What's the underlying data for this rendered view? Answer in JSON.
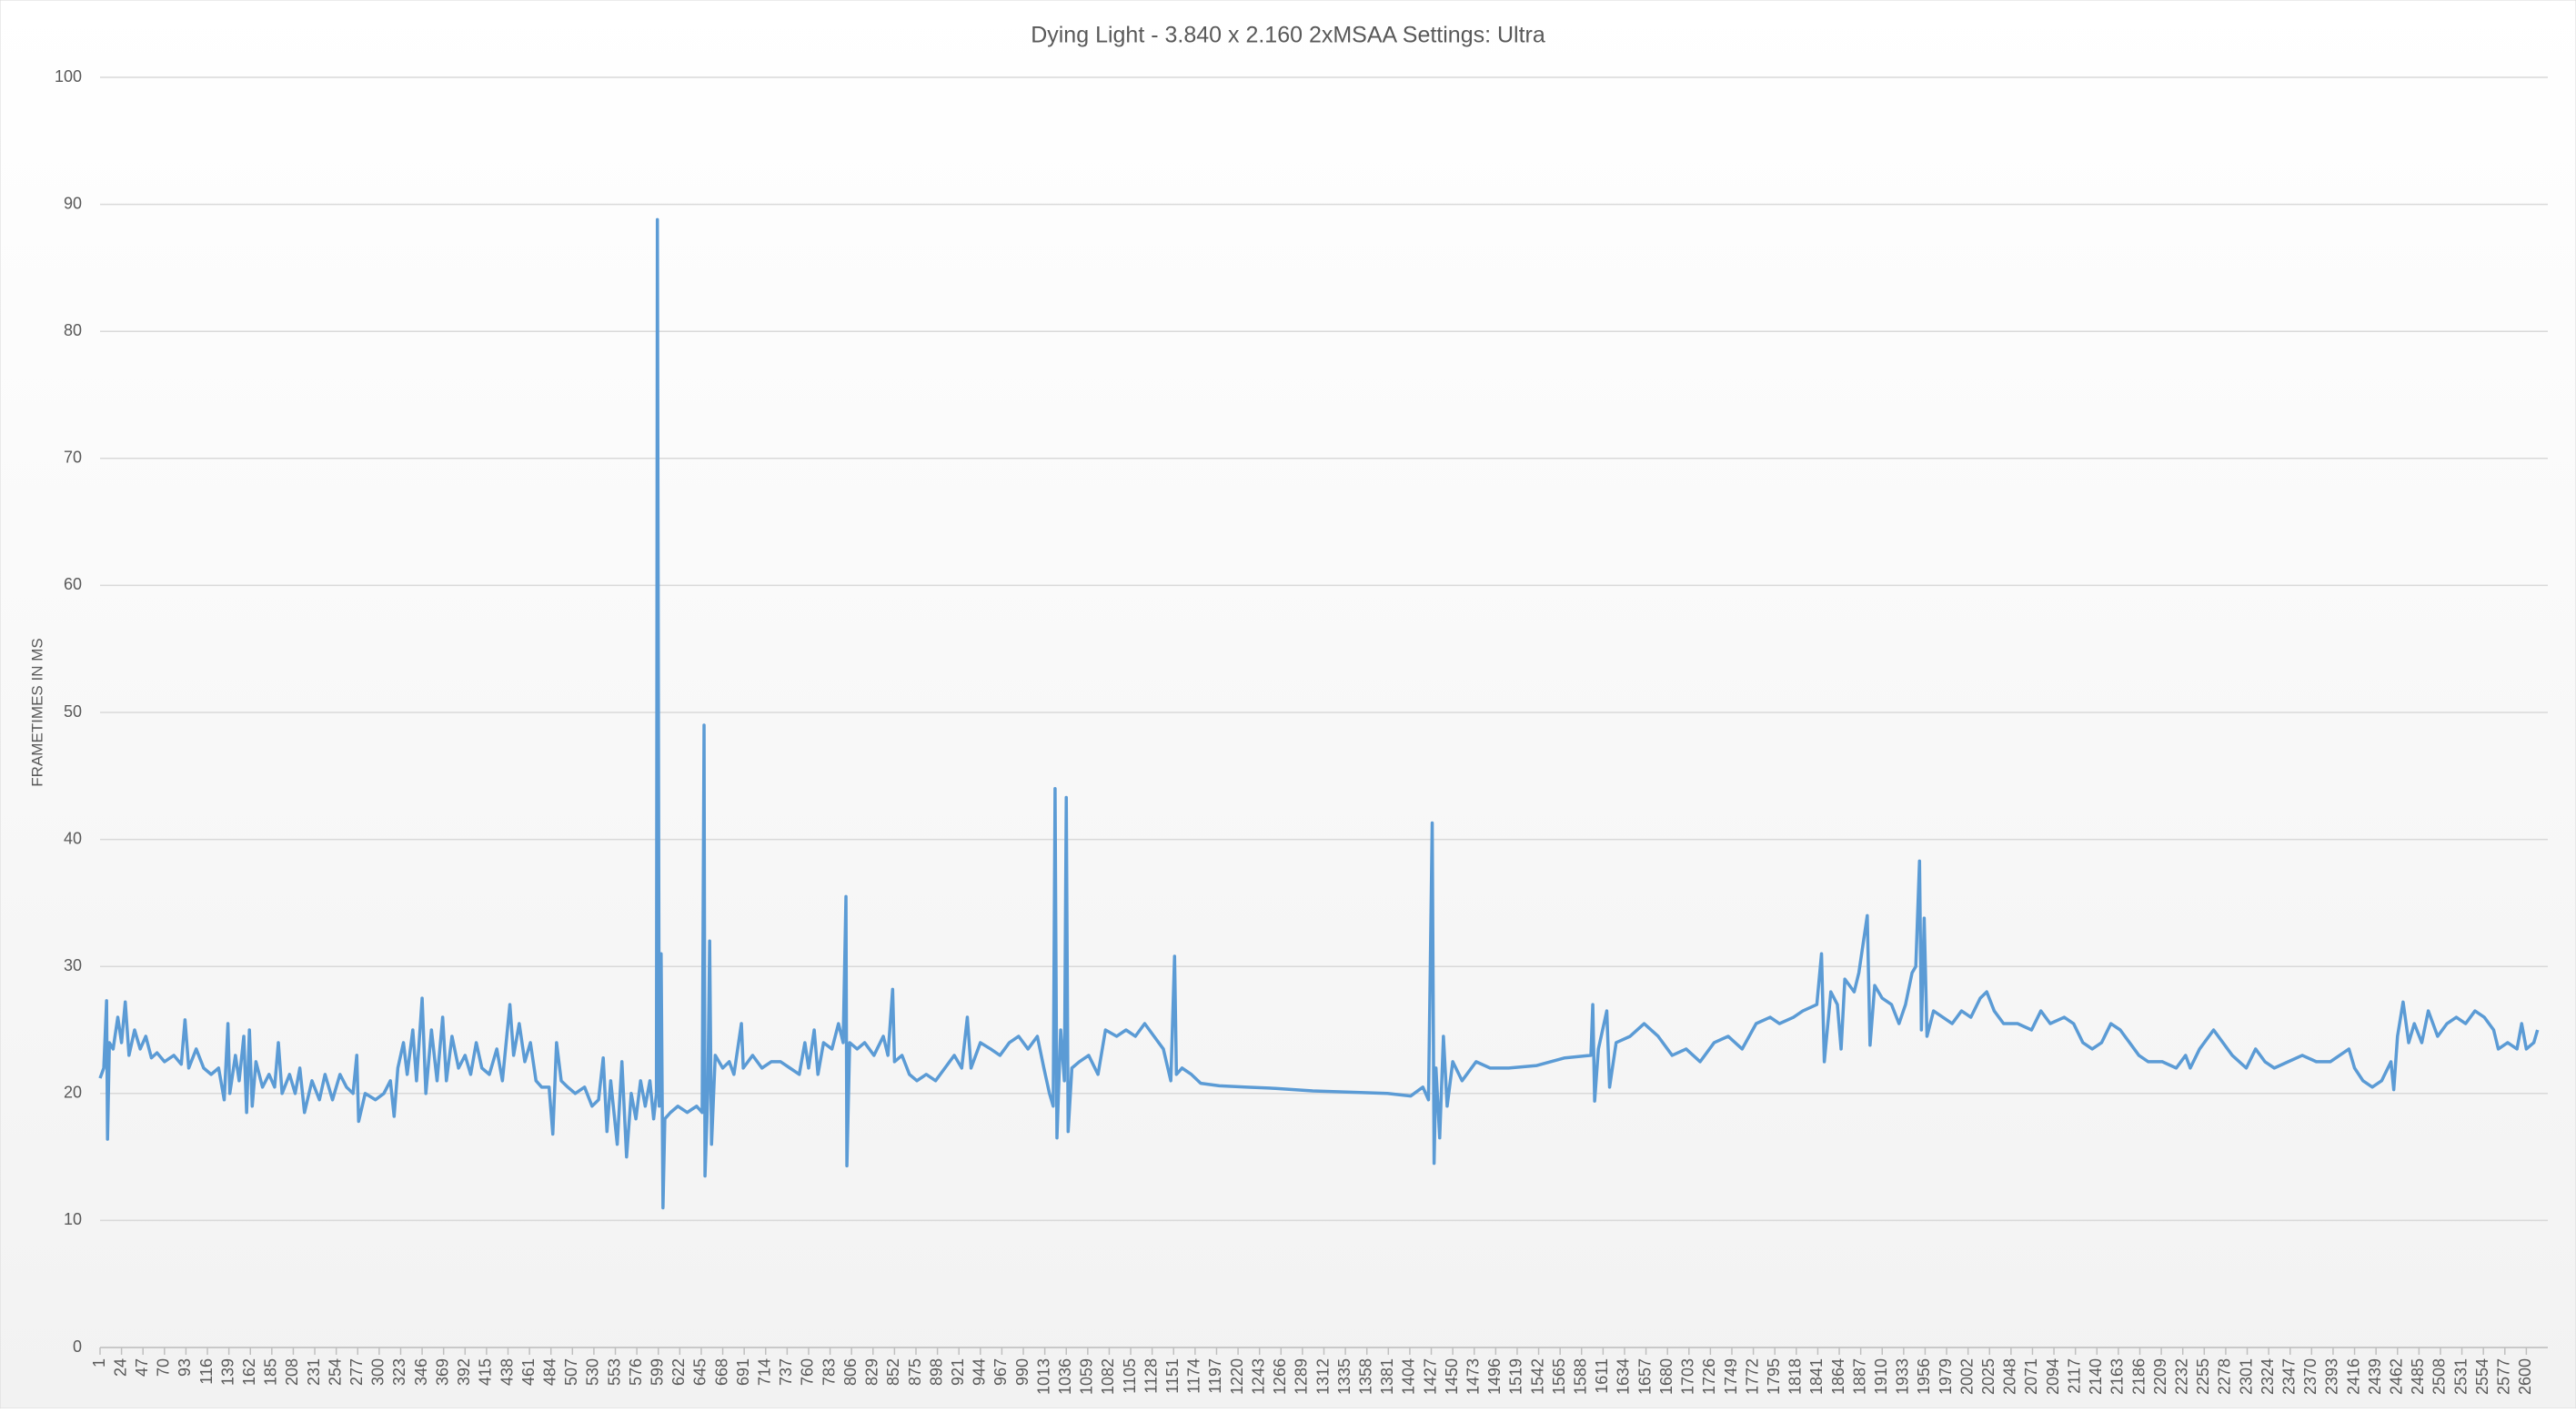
{
  "chart_data": {
    "type": "line",
    "title": "Dying Light - 3.840 x 2.160 2xMSAA Settings: Ultra",
    "y_label": "FRAMETIMES IN MS",
    "color": "#5b9bd5",
    "grid": true,
    "ylim": [
      0,
      100
    ],
    "yticks": [
      0,
      10,
      20,
      30,
      40,
      50,
      60,
      70,
      80,
      90,
      100
    ],
    "xlim": [
      1,
      2623
    ],
    "xticks": [
      1,
      24,
      47,
      70,
      93,
      116,
      139,
      162,
      185,
      208,
      231,
      254,
      277,
      300,
      323,
      346,
      369,
      392,
      415,
      438,
      461,
      484,
      507,
      530,
      553,
      576,
      599,
      622,
      645,
      668,
      691,
      714,
      737,
      760,
      783,
      806,
      829,
      852,
      875,
      898,
      921,
      944,
      967,
      990,
      1013,
      1036,
      1059,
      1082,
      1105,
      1128,
      1151,
      1174,
      1197,
      1220,
      1243,
      1266,
      1289,
      1312,
      1335,
      1358,
      1381,
      1404,
      1427,
      1450,
      1473,
      1496,
      1519,
      1542,
      1565,
      1588,
      1611,
      1634,
      1657,
      1680,
      1703,
      1726,
      1749,
      1772,
      1795,
      1818,
      1841,
      1864,
      1887,
      1910,
      1933,
      1956,
      1979,
      2002,
      2025,
      2048,
      2071,
      2094,
      2117,
      2140,
      2163,
      2186,
      2209,
      2232,
      2255,
      2278,
      2301,
      2324,
      2347,
      2370,
      2393,
      2416,
      2439,
      2462,
      2485,
      2508,
      2531,
      2554,
      2577,
      2600
    ],
    "x": [
      1,
      5,
      8,
      9,
      11,
      15,
      20,
      24,
      28,
      32,
      38,
      44,
      50,
      56,
      62,
      70,
      80,
      88,
      92,
      96,
      104,
      112,
      120,
      128,
      134,
      138,
      140,
      146,
      150,
      155,
      158,
      161,
      164,
      168,
      175,
      182,
      188,
      192,
      196,
      204,
      210,
      215,
      220,
      228,
      236,
      242,
      250,
      258,
      265,
      272,
      276,
      278,
      285,
      296,
      305,
      312,
      316,
      320,
      326,
      330,
      336,
      340,
      346,
      350,
      356,
      362,
      368,
      372,
      378,
      385,
      392,
      398,
      404,
      410,
      418,
      426,
      432,
      440,
      444,
      450,
      456,
      462,
      468,
      474,
      482,
      486,
      490,
      495,
      502,
      510,
      520,
      528,
      535,
      540,
      544,
      548,
      555,
      560,
      565,
      570,
      575,
      580,
      585,
      590,
      594,
      597,
      598,
      600,
      602,
      604,
      606,
      612,
      620,
      630,
      640,
      646,
      648,
      649,
      652,
      654,
      656,
      660,
      668,
      675,
      680,
      688,
      690,
      700,
      710,
      720,
      730,
      740,
      750,
      756,
      760,
      766,
      770,
      776,
      785,
      792,
      797,
      800,
      801,
      804,
      812,
      820,
      830,
      840,
      845,
      850,
      852,
      860,
      868,
      876,
      886,
      896,
      906,
      916,
      924,
      930,
      934,
      944,
      955,
      965,
      975,
      985,
      995,
      1005,
      1012,
      1018,
      1022,
      1024,
      1026,
      1030,
      1034,
      1036,
      1038,
      1042,
      1050,
      1060,
      1070,
      1078,
      1090,
      1100,
      1110,
      1120,
      1130,
      1140,
      1148,
      1152,
      1154,
      1160,
      1170,
      1180,
      1200,
      1230,
      1260,
      1300,
      1340,
      1380,
      1405,
      1418,
      1424,
      1428,
      1430,
      1432,
      1436,
      1440,
      1444,
      1450,
      1460,
      1475,
      1490,
      1510,
      1540,
      1570,
      1598,
      1600,
      1602,
      1606,
      1615,
      1618,
      1625,
      1640,
      1655,
      1670,
      1685,
      1700,
      1715,
      1730,
      1745,
      1760,
      1775,
      1790,
      1800,
      1815,
      1825,
      1840,
      1845,
      1848,
      1855,
      1862,
      1866,
      1870,
      1880,
      1885,
      1894,
      1897,
      1902,
      1910,
      1920,
      1928,
      1935,
      1942,
      1946,
      1950,
      1952,
      1955,
      1958,
      1965,
      1975,
      1985,
      1995,
      2005,
      2015,
      2022,
      2030,
      2040,
      2055,
      2070,
      2080,
      2090,
      2105,
      2115,
      2125,
      2135,
      2145,
      2155,
      2165,
      2175,
      2185,
      2195,
      2210,
      2225,
      2235,
      2240,
      2250,
      2265,
      2275,
      2285,
      2300,
      2310,
      2320,
      2330,
      2345,
      2360,
      2375,
      2390,
      2400,
      2410,
      2416,
      2425,
      2435,
      2445,
      2455,
      2458,
      2462,
      2468,
      2474,
      2480,
      2488,
      2495,
      2505,
      2515,
      2525,
      2535,
      2545,
      2555,
      2565,
      2570,
      2580,
      2590,
      2595,
      2600,
      2608,
      2612
    ],
    "values": [
      21.2,
      22,
      27.3,
      16.4,
      24,
      23.5,
      26,
      24,
      27.2,
      23,
      25,
      23.5,
      24.5,
      22.8,
      23.2,
      22.5,
      23,
      22.3,
      25.8,
      22,
      23.5,
      22,
      21.5,
      22,
      19.5,
      25.5,
      20,
      23,
      21,
      24.5,
      18.5,
      25,
      19,
      22.5,
      20.5,
      21.5,
      20.5,
      24,
      20,
      21.5,
      20,
      22,
      18.5,
      21,
      19.5,
      21.5,
      19.5,
      21.5,
      20.5,
      20,
      23,
      17.8,
      20,
      19.5,
      20,
      21,
      18.2,
      22,
      24,
      21.5,
      25,
      21,
      27.5,
      20,
      25,
      21,
      26,
      21,
      24.5,
      22,
      23,
      21.5,
      24,
      22,
      21.5,
      23.5,
      21,
      27,
      23,
      25.5,
      22.5,
      24,
      21,
      20.5,
      20.5,
      16.8,
      24,
      21,
      20.5,
      20,
      20.5,
      19,
      19.5,
      22.8,
      17,
      21,
      16,
      22.5,
      15,
      20,
      18,
      21,
      19,
      21,
      18,
      20,
      88.8,
      19,
      31,
      11,
      18,
      18.5,
      19,
      18.5,
      19,
      18.5,
      49,
      13.5,
      20,
      32,
      16,
      23,
      22,
      22.5,
      21.5,
      25.5,
      22,
      23,
      22,
      22.5,
      22.5,
      22,
      21.5,
      24,
      22,
      25,
      21.5,
      24,
      23.5,
      25.5,
      24,
      35.5,
      14.3,
      24,
      23.5,
      24,
      23,
      24.5,
      23,
      28.2,
      22.5,
      23,
      21.5,
      21,
      21.5,
      21,
      22,
      23,
      22,
      26,
      22,
      24,
      23.5,
      23,
      24,
      24.5,
      23.5,
      24.5,
      22,
      20,
      19,
      44,
      16.5,
      25,
      21,
      43.3,
      17,
      22,
      22.5,
      23,
      21.5,
      25,
      24.5,
      25,
      24.5,
      25.5,
      24.5,
      23.5,
      21,
      30.8,
      21.5,
      22,
      21.5,
      20.8,
      20.6,
      20.5,
      20.4,
      20.2,
      20.1,
      20,
      19.8,
      20.5,
      19.5,
      41.3,
      14.5,
      22,
      16.5,
      24.5,
      19,
      22.5,
      21,
      22.5,
      22,
      22,
      22.2,
      22.8,
      23,
      27,
      19.4,
      23.5,
      26.5,
      20.5,
      24,
      24.5,
      25.5,
      24.5,
      23,
      23.5,
      22.5,
      24,
      24.5,
      23.5,
      25.5,
      26,
      25.5,
      26,
      26.5,
      27,
      31,
      22.5,
      28,
      27,
      23.5,
      29,
      28,
      29.5,
      34,
      23.8,
      28.5,
      27.5,
      27,
      25.5,
      27,
      29.5,
      30,
      38.3,
      25,
      33.8,
      24.5,
      26.5,
      26,
      25.5,
      26.5,
      26,
      27.5,
      28,
      26.5,
      25.5,
      25.5,
      25,
      26.5,
      25.5,
      26,
      25.5,
      24,
      23.5,
      24,
      25.5,
      25,
      24,
      23,
      22.5,
      22.5,
      22,
      23,
      22,
      23.5,
      25,
      24,
      23,
      22,
      23.5,
      22.5,
      22,
      22.5,
      23,
      22.5,
      22.5,
      23,
      23.5,
      22,
      21,
      20.5,
      21,
      22.5,
      20.3,
      24.5,
      27.2,
      24,
      25.5,
      24,
      26.5,
      24.5,
      25.5,
      26,
      25.5,
      26.5,
      26,
      25,
      23.5,
      24,
      23.5,
      25.5,
      23.5,
      24,
      25
    ]
  }
}
